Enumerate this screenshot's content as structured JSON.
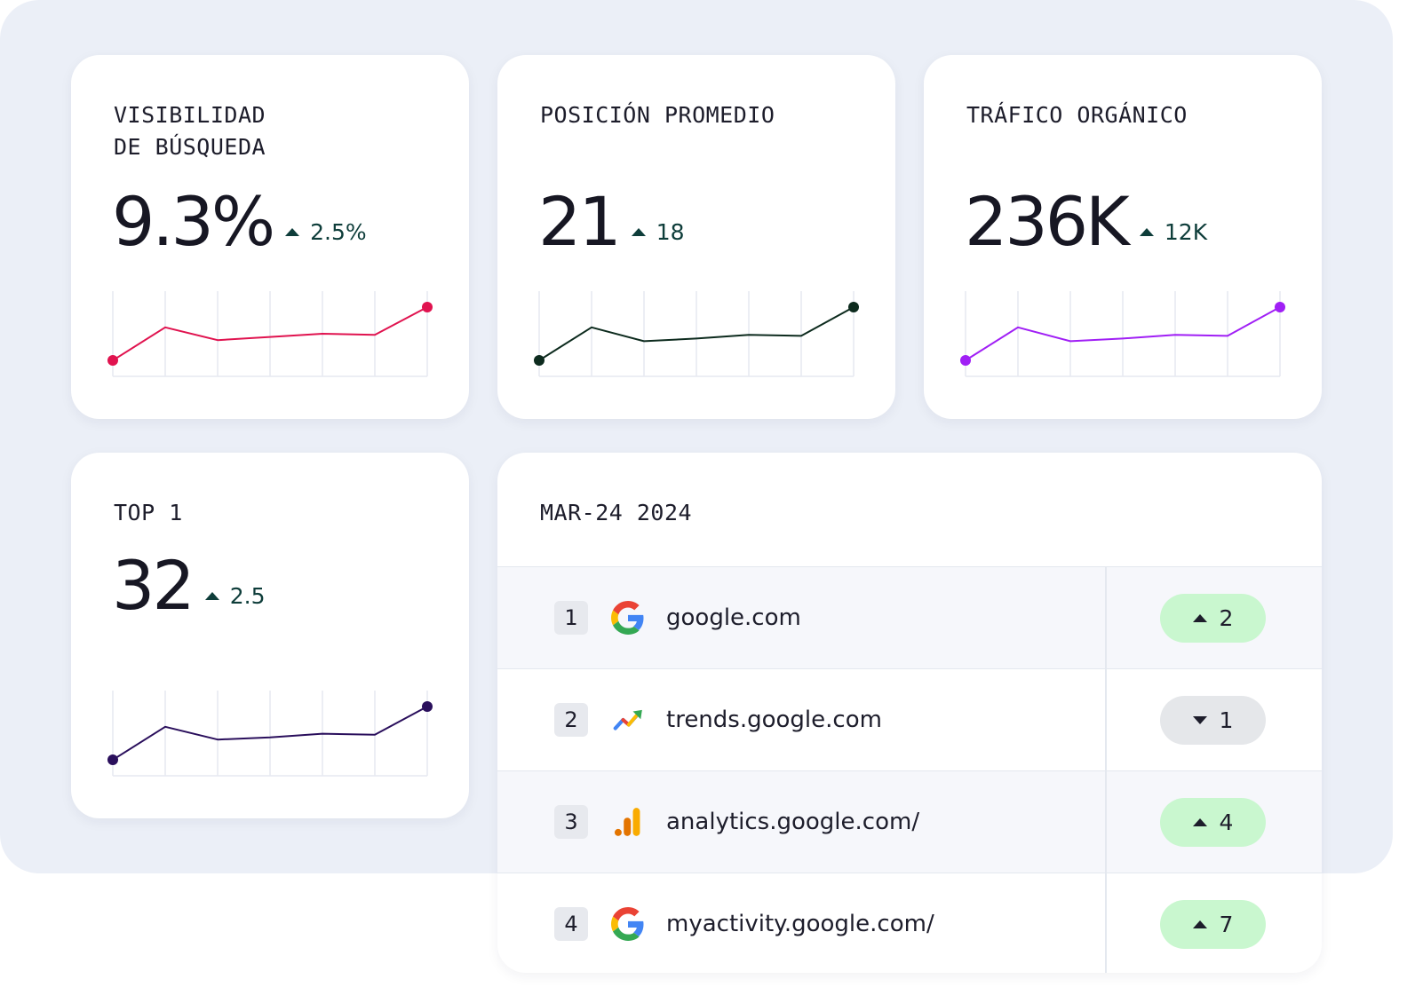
{
  "cards": [
    {
      "title": "VISIBILIDAD\nDE BÚSQUEDA",
      "value": "9.3%",
      "delta": "2.5%",
      "line_color": "#e0134f",
      "trend": [
        0.0,
        0.62,
        0.38,
        0.44,
        0.5,
        0.48,
        1.0
      ]
    },
    {
      "title": "POSICIÓN PROMEDIO",
      "value": "21",
      "delta": "18",
      "line_color": "#0d2b1e",
      "trend": [
        0.0,
        0.62,
        0.36,
        0.41,
        0.48,
        0.46,
        1.0
      ]
    },
    {
      "title": "TRÁFICO ORGÁNICO",
      "value": "236K",
      "delta": "12K",
      "line_color": "#a01ff5",
      "trend": [
        0.0,
        0.62,
        0.36,
        0.41,
        0.48,
        0.46,
        1.0
      ]
    },
    {
      "title": "TOP 1",
      "value": "32",
      "delta": "2.5",
      "line_color": "#2a0f5c",
      "trend": [
        0.0,
        0.62,
        0.38,
        0.42,
        0.49,
        0.47,
        1.0
      ]
    }
  ],
  "ranking": {
    "title": "MAR-24 2024",
    "rows": [
      {
        "rank": "1",
        "site": "google.com",
        "icon": "google-icon",
        "change": "2",
        "direction": "up"
      },
      {
        "rank": "2",
        "site": "trends.google.com",
        "icon": "google-trends-icon",
        "change": "1",
        "direction": "down"
      },
      {
        "rank": "3",
        "site": "analytics.google.com/",
        "icon": "google-analytics-icon",
        "change": "4",
        "direction": "up"
      },
      {
        "rank": "4",
        "site": "myactivity.google.com/",
        "icon": "google-icon",
        "change": "7",
        "direction": "up"
      }
    ]
  },
  "colors": {
    "background": "#ebeff7",
    "positive_pill": "#c9f7cf",
    "neutral_pill": "#e5e7ea",
    "delta_text": "#0e3d3a"
  }
}
